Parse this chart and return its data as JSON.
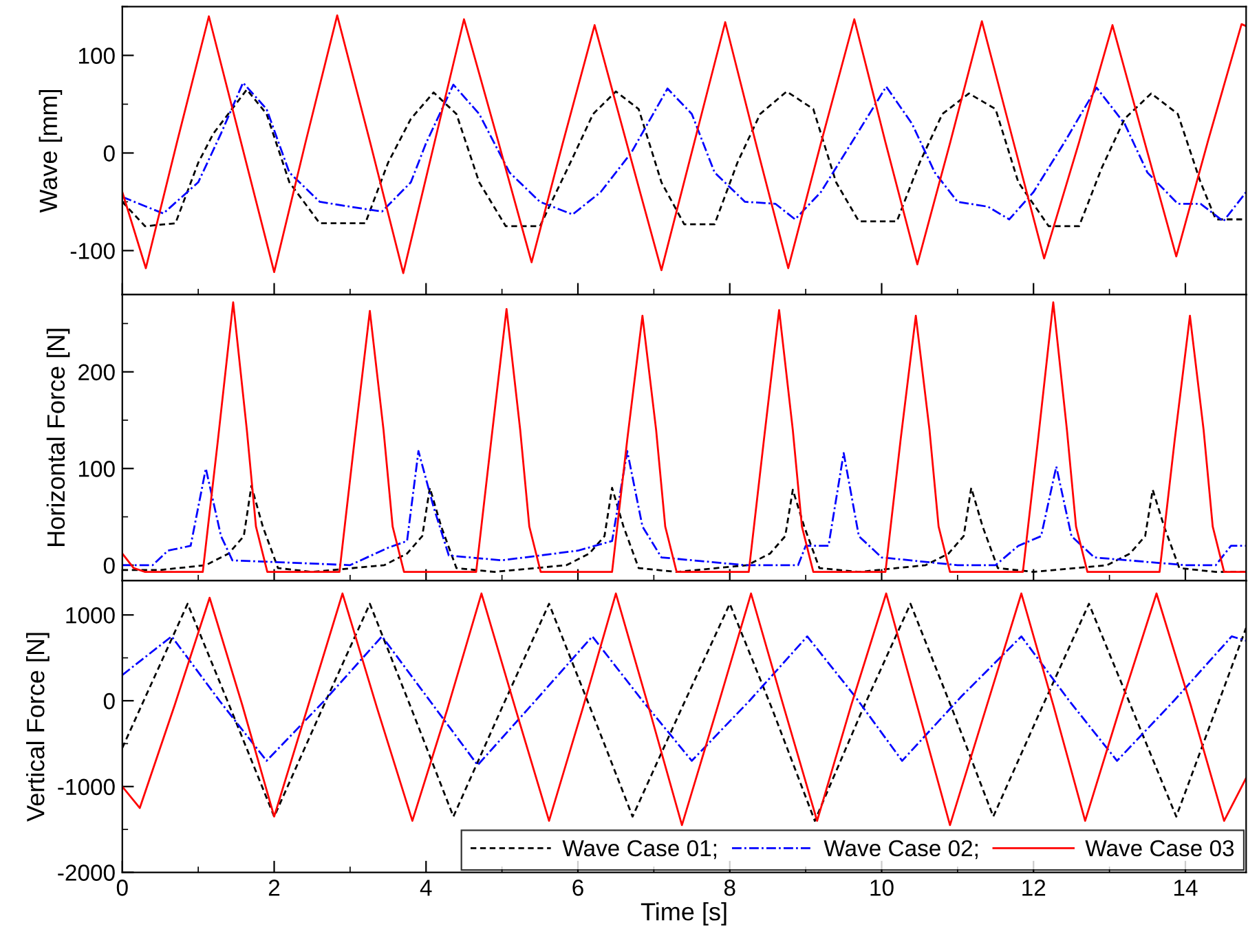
{
  "chart_data": [
    {
      "type": "line",
      "ylabel": "Wave [mm]",
      "xlim": [
        0,
        14.8
      ],
      "xticks": [
        0,
        2,
        4,
        6,
        8,
        10,
        12,
        14
      ],
      "ylim": [
        -145,
        150
      ],
      "yticks": [
        -100,
        0,
        100
      ],
      "tick_labels": "y",
      "grid": false,
      "legend": false,
      "series": [
        {
          "color": "#000000",
          "line_style": "dashed",
          "x": [
            0,
            0.3,
            0.7,
            1.0,
            1.2,
            1.64,
            1.9,
            2.2,
            2.6,
            3.2,
            3.5,
            3.8,
            4.1,
            4.4,
            4.7,
            5.05,
            5.5,
            5.9,
            6.2,
            6.5,
            6.8,
            7.1,
            7.4,
            7.8,
            8.1,
            8.4,
            8.75,
            9.1,
            9.4,
            9.7,
            10.2,
            10.5,
            10.8,
            11.15,
            11.5,
            11.8,
            12.2,
            12.6,
            12.9,
            13.2,
            13.55,
            13.9,
            14.2,
            14.4,
            14.8
          ],
          "values": [
            -50,
            -75,
            -72,
            -10,
            20,
            65,
            40,
            -30,
            -72,
            -72,
            -10,
            35,
            62,
            40,
            -30,
            -75,
            -75,
            -10,
            40,
            63,
            45,
            -30,
            -73,
            -73,
            -10,
            40,
            63,
            45,
            -30,
            -70,
            -70,
            -10,
            40,
            61,
            45,
            -30,
            -75,
            -75,
            -15,
            35,
            61,
            40,
            -30,
            -68,
            -68
          ]
        },
        {
          "color": "#0000ff",
          "line_style": "dashdot",
          "x": [
            0,
            0.54,
            1.0,
            1.3,
            1.59,
            1.9,
            2.2,
            2.6,
            3.0,
            3.42,
            3.8,
            4.0,
            4.36,
            4.7,
            5.1,
            5.5,
            5.93,
            6.3,
            6.7,
            7.18,
            7.5,
            7.8,
            8.2,
            8.6,
            8.86,
            9.2,
            9.6,
            10.06,
            10.4,
            10.7,
            11.0,
            11.4,
            11.68,
            12.0,
            12.4,
            12.83,
            13.2,
            13.5,
            13.9,
            14.2,
            14.5,
            14.8
          ],
          "values": [
            -45,
            -62,
            -30,
            20,
            72,
            45,
            -20,
            -50,
            -55,
            -60,
            -30,
            10,
            70,
            40,
            -20,
            -50,
            -63,
            -40,
            0,
            66,
            40,
            -20,
            -50,
            -52,
            -68,
            -40,
            10,
            68,
            30,
            -20,
            -50,
            -55,
            -68,
            -40,
            10,
            67,
            30,
            -20,
            -52,
            -52,
            -70,
            -40
          ]
        },
        {
          "color": "#ff0000",
          "line_style": "solid",
          "x": [
            0,
            0.31,
            0.72,
            1.14,
            1.57,
            2.0,
            2.41,
            2.83,
            3.27,
            3.7,
            4.1,
            4.5,
            4.95,
            5.39,
            5.8,
            6.22,
            6.66,
            7.1,
            7.52,
            7.94,
            8.35,
            8.77,
            9.2,
            9.64,
            10.05,
            10.47,
            10.9,
            11.32,
            11.73,
            12.14,
            12.6,
            13.04,
            13.46,
            13.88,
            14.3,
            14.74,
            14.8
          ],
          "values": [
            -40,
            -118,
            11,
            140,
            9,
            -122,
            10,
            141,
            9,
            -123,
            7,
            137,
            12,
            -112,
            10,
            131,
            5,
            -120,
            7,
            134,
            8,
            -118,
            10,
            137,
            11,
            -114,
            10,
            135,
            13,
            -108,
            11,
            131,
            12,
            -106,
            13,
            132,
            130
          ]
        }
      ]
    },
    {
      "type": "line",
      "ylabel": "Horizontal Force [N]",
      "xlim": [
        0,
        14.8
      ],
      "xticks": [
        0,
        2,
        4,
        6,
        8,
        10,
        12,
        14
      ],
      "ylim": [
        -16,
        280
      ],
      "yticks": [
        0,
        100,
        200
      ],
      "tick_labels": "y",
      "grid": false,
      "legend": false,
      "series": [
        {
          "color": "#000000",
          "line_style": "dashed",
          "x": [
            0,
            0.5,
            1.1,
            1.4,
            1.6,
            1.7,
            1.85,
            2.05,
            2.5,
            3.45,
            3.75,
            3.95,
            4.05,
            4.2,
            4.4,
            4.9,
            5.85,
            6.15,
            6.35,
            6.45,
            6.6,
            6.8,
            7.3,
            8.23,
            8.53,
            8.73,
            8.83,
            8.98,
            9.18,
            9.7,
            10.58,
            10.88,
            11.08,
            11.18,
            11.33,
            11.53,
            12.0,
            12.97,
            13.27,
            13.47,
            13.57,
            13.72,
            13.92,
            14.4,
            14.8
          ],
          "values": [
            -5,
            -5,
            0,
            12,
            30,
            82,
            40,
            -3,
            -7,
            0,
            12,
            30,
            80,
            40,
            -3,
            -7,
            0,
            12,
            30,
            80,
            40,
            -3,
            -7,
            0,
            12,
            30,
            78,
            40,
            -3,
            -7,
            0,
            12,
            30,
            80,
            40,
            -3,
            -7,
            0,
            12,
            30,
            78,
            40,
            -3,
            -7,
            -7
          ]
        },
        {
          "color": "#0000ff",
          "line_style": "dashdot",
          "x": [
            0,
            0.4,
            0.6,
            0.9,
            1.1,
            1.3,
            1.45,
            3.0,
            3.5,
            3.75,
            3.9,
            4.1,
            4.3,
            5.0,
            6.0,
            6.45,
            6.65,
            6.85,
            7.1,
            8.2,
            8.9,
            9.0,
            9.3,
            9.5,
            9.7,
            10.0,
            11.0,
            11.5,
            11.8,
            12.1,
            12.3,
            12.5,
            12.8,
            14.0,
            14.4,
            14.6,
            14.8
          ],
          "values": [
            0,
            0,
            15,
            20,
            100,
            30,
            5,
            0,
            18,
            25,
            118,
            60,
            10,
            5,
            15,
            25,
            118,
            40,
            8,
            0,
            0,
            20,
            20,
            116,
            30,
            8,
            0,
            0,
            20,
            30,
            102,
            30,
            8,
            0,
            0,
            20,
            20
          ]
        },
        {
          "color": "#ff0000",
          "line_style": "solid",
          "x": [
            0,
            0.15,
            0.3,
            1.06,
            1.26,
            1.46,
            1.64,
            1.76,
            1.91,
            2.86,
            3.06,
            3.26,
            3.44,
            3.56,
            3.71,
            4.66,
            4.86,
            5.06,
            5.24,
            5.36,
            5.51,
            6.45,
            6.65,
            6.85,
            7.03,
            7.15,
            7.3,
            8.25,
            8.45,
            8.65,
            8.83,
            8.95,
            9.1,
            10.05,
            10.25,
            10.45,
            10.63,
            10.75,
            10.9,
            11.86,
            12.06,
            12.26,
            12.44,
            12.56,
            12.71,
            13.66,
            13.86,
            14.06,
            14.24,
            14.36,
            14.51,
            14.8
          ],
          "values": [
            12,
            -3,
            -7,
            -7,
            130,
            272,
            140,
            40,
            -7,
            -7,
            130,
            263,
            140,
            40,
            -7,
            -7,
            130,
            265,
            140,
            40,
            -7,
            -7,
            130,
            258,
            140,
            40,
            -7,
            -7,
            130,
            264,
            140,
            40,
            -7,
            -7,
            130,
            258,
            140,
            40,
            -7,
            -7,
            130,
            272,
            140,
            40,
            -7,
            -7,
            130,
            258,
            140,
            40,
            -7,
            -7
          ]
        }
      ]
    },
    {
      "type": "line",
      "ylabel": "Vertical Force [N]",
      "xlabel": "Time [s]",
      "xlim": [
        0,
        14.8
      ],
      "xticks": [
        0,
        2,
        4,
        6,
        8,
        10,
        12,
        14
      ],
      "ylim": [
        -2000,
        1400
      ],
      "yticks": [
        -2000,
        -1000,
        0,
        1000
      ],
      "grid": false,
      "legend": "bottom right",
      "series": [
        {
          "name": "Wave Case 01;",
          "color": "#000000",
          "line_style": "dashed",
          "x": [
            0,
            0.86,
            1.43,
            2.0,
            2.63,
            3.26,
            3.81,
            4.36,
            4.99,
            5.62,
            6.17,
            6.72,
            7.36,
            8.0,
            8.56,
            9.12,
            9.75,
            10.38,
            10.93,
            11.47,
            12.1,
            12.73,
            13.3,
            13.88,
            14.8
          ],
          "values": [
            -550,
            1130,
            -100,
            -1350,
            -100,
            1130,
            -100,
            -1350,
            -100,
            1130,
            -100,
            -1350,
            -100,
            1130,
            -100,
            -1400,
            -100,
            1130,
            -100,
            -1350,
            -100,
            1130,
            -100,
            -1350,
            850
          ]
        },
        {
          "name": "Wave Case 02;",
          "color": "#0000ff",
          "line_style": "dashdot",
          "x": [
            0,
            0.65,
            1.28,
            1.9,
            2.66,
            3.42,
            4.05,
            4.68,
            5.44,
            6.19,
            6.85,
            7.5,
            8.26,
            9.02,
            9.65,
            10.27,
            11.05,
            11.84,
            12.47,
            13.1,
            13.85,
            14.61,
            14.8
          ],
          "values": [
            300,
            750,
            0,
            -700,
            0,
            750,
            0,
            -750,
            0,
            750,
            0,
            -700,
            0,
            750,
            50,
            -700,
            50,
            750,
            0,
            -700,
            0,
            750,
            700
          ]
        },
        {
          "name": "Wave Case 03",
          "color": "#ff0000",
          "line_style": "solid",
          "x": [
            0,
            0.23,
            0.69,
            1.15,
            1.58,
            2.0,
            2.45,
            2.9,
            3.36,
            3.82,
            4.28,
            4.73,
            5.18,
            5.62,
            6.06,
            6.5,
            6.94,
            7.37,
            7.83,
            8.28,
            8.72,
            9.15,
            9.6,
            10.06,
            10.48,
            10.9,
            11.37,
            11.84,
            12.26,
            12.68,
            13.15,
            13.62,
            14.07,
            14.51,
            14.8
          ],
          "values": [
            -1000,
            -1250,
            -50,
            1200,
            -50,
            -1350,
            -50,
            1250,
            -100,
            -1400,
            -100,
            1250,
            -100,
            -1400,
            -100,
            1250,
            -100,
            -1450,
            -100,
            1250,
            -100,
            -1400,
            -50,
            1250,
            -100,
            -1450,
            -100,
            1250,
            -50,
            -1400,
            -50,
            1250,
            -50,
            -1400,
            -900
          ]
        }
      ]
    }
  ]
}
